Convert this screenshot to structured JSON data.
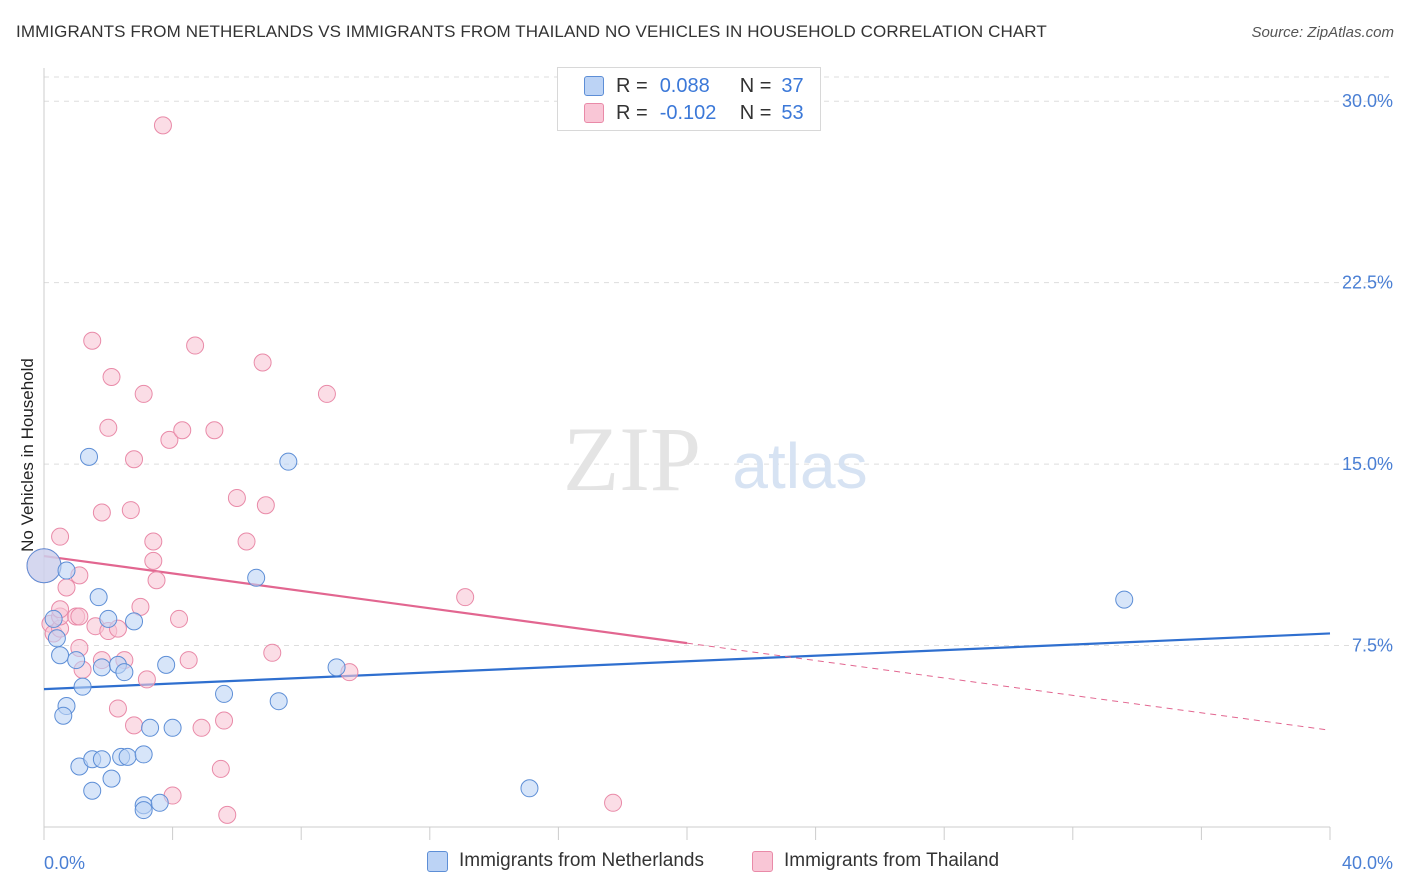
{
  "title": "IMMIGRANTS FROM NETHERLANDS VS IMMIGRANTS FROM THAILAND NO VEHICLES IN HOUSEHOLD CORRELATION CHART",
  "source": "Source: ZipAtlas.com",
  "watermark": {
    "zip": "ZIP",
    "atlas": "atlas"
  },
  "legend": {
    "series1": {
      "r_label": "R =",
      "r_value": "0.088",
      "n_label": "N =",
      "n_value": "37"
    },
    "series2": {
      "r_label": "R =",
      "r_value": "-0.102",
      "n_label": "N =",
      "n_value": "53"
    }
  },
  "colors": {
    "netherlands_fill": "#bcd3f5",
    "netherlands_stroke": "#5d8ed6",
    "netherlands_line": "#2f6fcf",
    "thailand_fill": "#f9c6d6",
    "thailand_stroke": "#e98aa8",
    "thailand_line": "#e26690",
    "tick_label": "#4a7fd4",
    "grid": "#dddddd"
  },
  "chart_data": {
    "type": "scatter",
    "title": "IMMIGRANTS FROM NETHERLANDS VS IMMIGRANTS FROM THAILAND NO VEHICLES IN HOUSEHOLD CORRELATION CHART",
    "xlabel": "",
    "ylabel": "No Vehicles in Household",
    "xlim": [
      0,
      40
    ],
    "ylim": [
      0,
      31
    ],
    "x_tick_labels": [
      "0.0%",
      "40.0%"
    ],
    "y_ticks": [
      7.5,
      15.0,
      22.5,
      30.0
    ],
    "y_tick_labels": [
      "7.5%",
      "15.0%",
      "22.5%",
      "30.0%"
    ],
    "grid": true,
    "legend_position": "top-center",
    "series": [
      {
        "name": "Immigrants from Netherlands",
        "points": [
          [
            0.0,
            10.8
          ],
          [
            0.3,
            8.6
          ],
          [
            0.4,
            7.8
          ],
          [
            0.5,
            7.1
          ],
          [
            0.7,
            10.6
          ],
          [
            0.7,
            5.0
          ],
          [
            0.6,
            4.6
          ],
          [
            1.0,
            6.9
          ],
          [
            1.2,
            5.8
          ],
          [
            1.1,
            2.5
          ],
          [
            1.4,
            15.3
          ],
          [
            1.5,
            2.8
          ],
          [
            1.5,
            1.5
          ],
          [
            1.7,
            9.5
          ],
          [
            1.8,
            6.6
          ],
          [
            1.8,
            2.8
          ],
          [
            2.0,
            8.6
          ],
          [
            2.1,
            2.0
          ],
          [
            2.3,
            6.7
          ],
          [
            2.4,
            2.9
          ],
          [
            2.5,
            6.4
          ],
          [
            2.6,
            2.9
          ],
          [
            2.8,
            8.5
          ],
          [
            3.1,
            0.9
          ],
          [
            3.1,
            0.7
          ],
          [
            3.1,
            3.0
          ],
          [
            3.3,
            4.1
          ],
          [
            3.6,
            1.0
          ],
          [
            3.8,
            6.7
          ],
          [
            4.0,
            4.1
          ],
          [
            5.6,
            5.5
          ],
          [
            6.6,
            10.3
          ],
          [
            7.3,
            5.2
          ],
          [
            7.6,
            15.1
          ],
          [
            9.1,
            6.6
          ],
          [
            15.1,
            1.6
          ],
          [
            33.6,
            9.4
          ]
        ]
      },
      {
        "name": "Immigrants from Thailand",
        "points": [
          [
            0.0,
            10.8
          ],
          [
            0.2,
            8.4
          ],
          [
            0.3,
            8.0
          ],
          [
            0.5,
            8.2
          ],
          [
            0.5,
            12.0
          ],
          [
            0.5,
            8.7
          ],
          [
            0.5,
            9.0
          ],
          [
            0.7,
            9.9
          ],
          [
            1.0,
            8.7
          ],
          [
            1.1,
            8.7
          ],
          [
            1.1,
            10.4
          ],
          [
            1.1,
            7.4
          ],
          [
            1.2,
            6.5
          ],
          [
            1.5,
            20.1
          ],
          [
            1.6,
            8.3
          ],
          [
            1.8,
            6.9
          ],
          [
            1.8,
            13.0
          ],
          [
            2.0,
            16.5
          ],
          [
            2.0,
            8.1
          ],
          [
            2.1,
            18.6
          ],
          [
            2.3,
            8.2
          ],
          [
            2.3,
            4.9
          ],
          [
            2.5,
            6.9
          ],
          [
            2.7,
            13.1
          ],
          [
            2.8,
            4.2
          ],
          [
            2.8,
            15.2
          ],
          [
            3.0,
            9.1
          ],
          [
            3.1,
            17.9
          ],
          [
            3.2,
            6.1
          ],
          [
            3.4,
            11.8
          ],
          [
            3.4,
            11.0
          ],
          [
            3.5,
            10.2
          ],
          [
            3.9,
            16.0
          ],
          [
            4.0,
            1.3
          ],
          [
            4.2,
            8.6
          ],
          [
            4.3,
            16.4
          ],
          [
            4.5,
            6.9
          ],
          [
            4.7,
            19.9
          ],
          [
            4.9,
            4.1
          ],
          [
            5.3,
            16.4
          ],
          [
            5.5,
            2.4
          ],
          [
            5.6,
            4.4
          ],
          [
            5.7,
            0.5
          ],
          [
            6.0,
            13.6
          ],
          [
            6.3,
            11.8
          ],
          [
            6.8,
            19.2
          ],
          [
            6.9,
            13.3
          ],
          [
            7.1,
            7.2
          ],
          [
            8.8,
            17.9
          ],
          [
            9.5,
            6.4
          ],
          [
            13.1,
            9.5
          ],
          [
            17.7,
            1.0
          ],
          [
            3.7,
            29.0
          ]
        ]
      }
    ],
    "trend_lines": [
      {
        "series": "Immigrants from Netherlands",
        "x": [
          0,
          40
        ],
        "y": [
          5.7,
          8.0
        ]
      },
      {
        "series": "Immigrants from Thailand",
        "x": [
          0,
          20
        ],
        "y": [
          11.2,
          7.6
        ],
        "dashed_extension": {
          "x": [
            20,
            40
          ],
          "y": [
            7.6,
            4.0
          ]
        }
      }
    ]
  }
}
